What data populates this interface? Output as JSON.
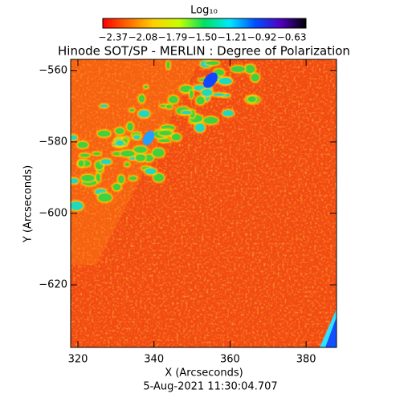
{
  "chart_data": {
    "type": "heatmap",
    "title": "Hinode SOT/SP - MERLIN : Degree of Polarization",
    "colorbar_label": "Log₁₀",
    "colorbar_ticks": [
      {
        "value": -2.37,
        "label": "−2.37"
      },
      {
        "value": -2.08,
        "label": "−2.08"
      },
      {
        "value": -1.79,
        "label": "−1.79"
      },
      {
        "value": -1.5,
        "label": "−1.50"
      },
      {
        "value": -1.21,
        "label": "−1.21"
      },
      {
        "value": -0.92,
        "label": "−0.92"
      },
      {
        "value": -0.63,
        "label": "−0.63"
      }
    ],
    "clim": [
      -2.47,
      -0.49
    ],
    "colormap": [
      "#ff0000",
      "#ff6a00",
      "#ffd000",
      "#c8ff00",
      "#00e060",
      "#00e8ff",
      "#0050ff",
      "#5000c0",
      "#000000"
    ],
    "x_label": "X (Arcseconds)",
    "y_label": "Y (Arcseconds)",
    "xlim": [
      318.1,
      388.0
    ],
    "xticks": [
      320,
      340,
      360,
      380
    ],
    "ylim": [
      -637.5,
      -556.9
    ],
    "yticks": [
      {
        "value": -560,
        "label": "−560"
      },
      {
        "value": -580,
        "label": "−580"
      },
      {
        "value": -600,
        "label": "−600"
      },
      {
        "value": -620,
        "label": "−620"
      }
    ],
    "timestamp": "5-Aug-2021 11:30:04.707"
  }
}
